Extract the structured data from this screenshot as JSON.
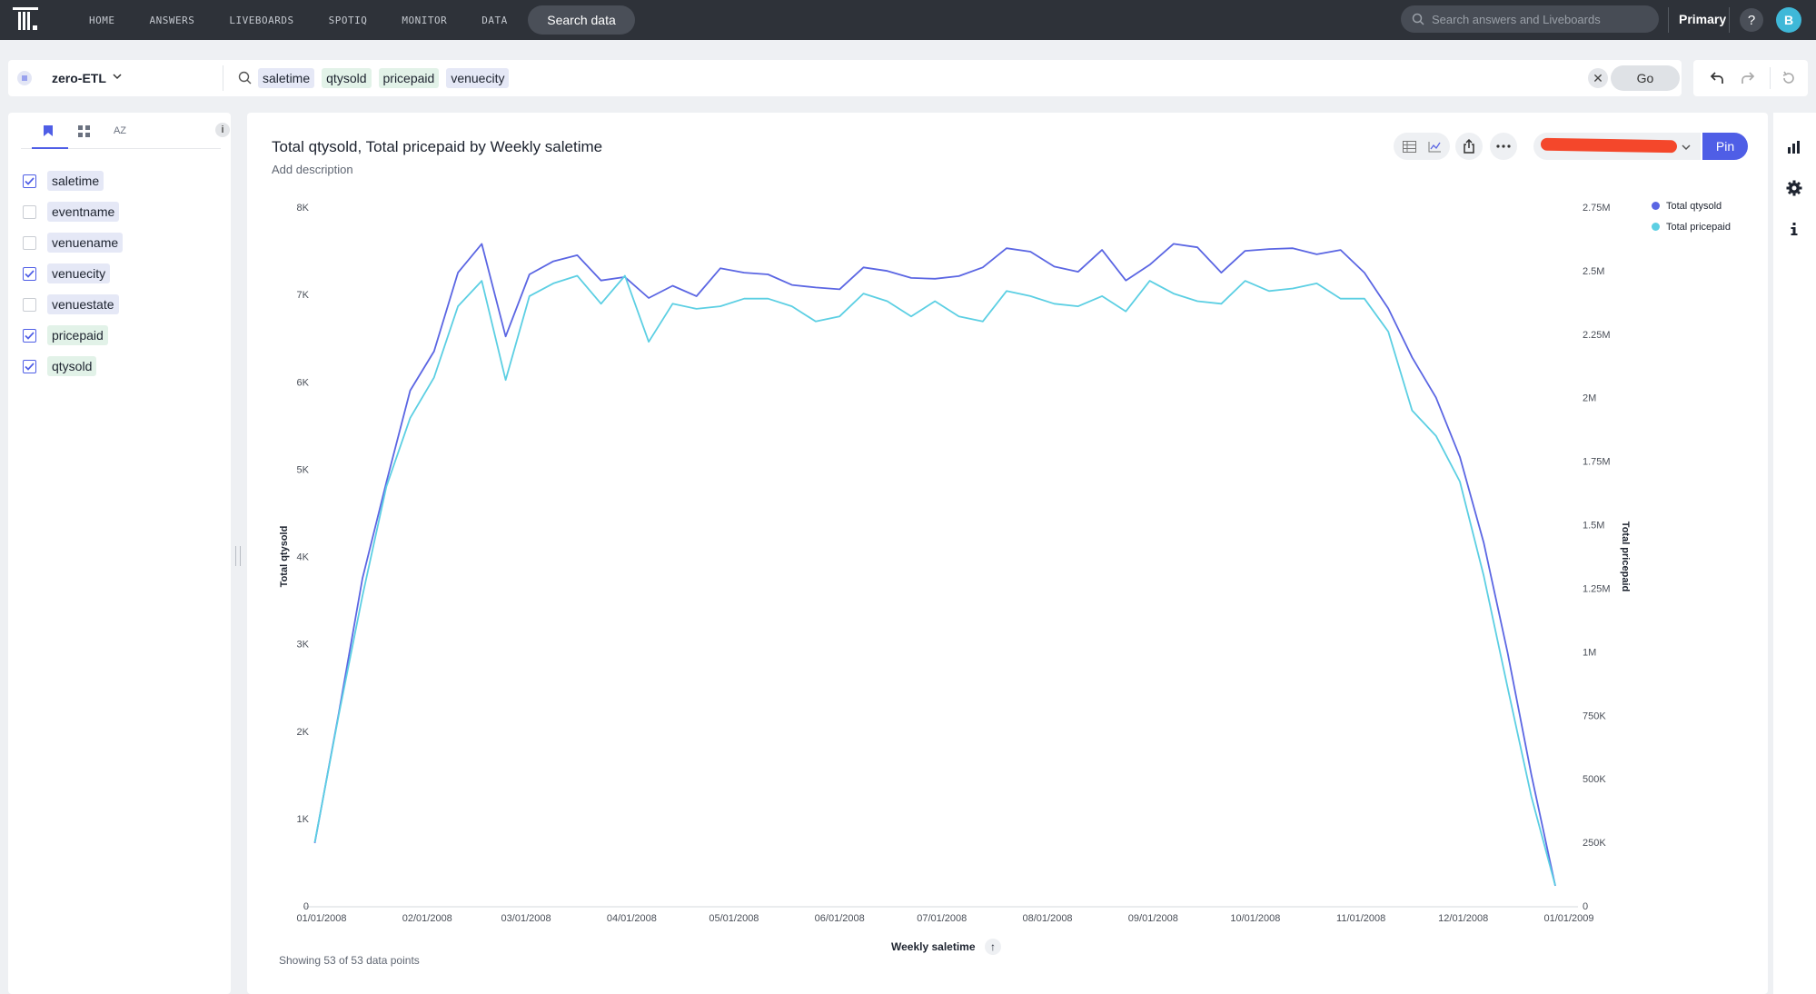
{
  "nav": {
    "links": [
      "HOME",
      "ANSWERS",
      "LIVEBOARDS",
      "SPOTIQ",
      "MONITOR",
      "DATA"
    ],
    "search_data_label": "Search data",
    "global_search_placeholder": "Search answers and Liveboards",
    "org_label": "Primary",
    "help_label": "?",
    "avatar_initial": "B"
  },
  "search_bar": {
    "source_name": "zero-ETL",
    "tokens": [
      {
        "label": "saletime",
        "kind": "attribute"
      },
      {
        "label": "qtysold",
        "kind": "measure"
      },
      {
        "label": "pricepaid",
        "kind": "measure"
      },
      {
        "label": "venuecity",
        "kind": "attribute"
      }
    ],
    "clear_label": "✕",
    "go_label": "Go"
  },
  "left_panel": {
    "tabs": [
      "bookmark",
      "grid",
      "AZ"
    ],
    "az_label": "AZ",
    "info_label": "i",
    "columns": [
      {
        "label": "saletime",
        "checked": true,
        "kind": "attribute"
      },
      {
        "label": "eventname",
        "checked": false,
        "kind": "attribute"
      },
      {
        "label": "venuename",
        "checked": false,
        "kind": "attribute"
      },
      {
        "label": "venuecity",
        "checked": true,
        "kind": "attribute"
      },
      {
        "label": "venuestate",
        "checked": false,
        "kind": "attribute"
      },
      {
        "label": "pricepaid",
        "checked": true,
        "kind": "measure"
      },
      {
        "label": "qtysold",
        "checked": true,
        "kind": "measure"
      }
    ]
  },
  "answer": {
    "title": "Total qtysold, Total pricepaid by Weekly saletime",
    "description_placeholder": "Add description",
    "pin_label": "Pin",
    "data_points_note": "Showing 53 of 53 data points",
    "sort_arrow": "↑"
  },
  "colors": {
    "accent": "#4f5ee6",
    "qtysold": "#5b66e3",
    "pricepaid": "#5ccfe3"
  },
  "chart_data": {
    "type": "line",
    "title": "Total qtysold, Total pricepaid by Weekly saletime",
    "xlabel": "Weekly saletime",
    "ylabel": "Total qtysold",
    "ylabel_right": "Total pricepaid",
    "x_ticks": [
      "01/01/2008",
      "02/01/2008",
      "03/01/2008",
      "04/01/2008",
      "05/01/2008",
      "06/01/2008",
      "07/01/2008",
      "08/01/2008",
      "09/01/2008",
      "10/01/2008",
      "11/01/2008",
      "12/01/2008",
      "01/01/2009"
    ],
    "y_ticks_left": [
      "0",
      "1K",
      "2K",
      "3K",
      "4K",
      "5K",
      "6K",
      "7K",
      "8K"
    ],
    "y_ticks_right": [
      "0",
      "250K",
      "500K",
      "750K",
      "1M",
      "1.25M",
      "1.5M",
      "1.75M",
      "2M",
      "2.25M",
      "2.5M",
      "2.75M"
    ],
    "ylim_left": [
      0,
      8000
    ],
    "ylim_right": [
      0,
      2750000
    ],
    "legend_position": "top-right",
    "grid": false,
    "x_dates": [
      "12/30/2007",
      "01/06/2008",
      "01/13/2008",
      "01/20/2008",
      "01/27/2008",
      "02/03/2008",
      "02/10/2008",
      "02/17/2008",
      "02/24/2008",
      "03/02/2008",
      "03/09/2008",
      "03/16/2008",
      "03/23/2008",
      "03/30/2008",
      "04/06/2008",
      "04/13/2008",
      "04/20/2008",
      "04/27/2008",
      "05/04/2008",
      "05/11/2008",
      "05/18/2008",
      "05/25/2008",
      "06/01/2008",
      "06/08/2008",
      "06/15/2008",
      "06/22/2008",
      "06/29/2008",
      "07/06/2008",
      "07/13/2008",
      "07/20/2008",
      "07/27/2008",
      "08/03/2008",
      "08/10/2008",
      "08/17/2008",
      "08/24/2008",
      "08/31/2008",
      "09/07/2008",
      "09/14/2008",
      "09/21/2008",
      "09/28/2008",
      "10/05/2008",
      "10/12/2008",
      "10/19/2008",
      "10/26/2008",
      "11/02/2008",
      "11/09/2008",
      "11/16/2008",
      "11/23/2008",
      "11/30/2008",
      "12/07/2008",
      "12/14/2008",
      "12/21/2008",
      "12/28/2008"
    ],
    "series": [
      {
        "name": "Total qtysold",
        "axis": "left",
        "values": [
          720,
          2200,
          3750,
          4850,
          5900,
          6350,
          7250,
          7580,
          6520,
          7230,
          7380,
          7450,
          7160,
          7200,
          6960,
          7100,
          6980,
          7300,
          7250,
          7230,
          7110,
          7080,
          7060,
          7310,
          7270,
          7190,
          7180,
          7210,
          7310,
          7530,
          7490,
          7320,
          7260,
          7510,
          7160,
          7340,
          7580,
          7540,
          7250,
          7500,
          7520,
          7530,
          7460,
          7510,
          7250,
          6840,
          6280,
          5820,
          5140,
          4160,
          2900,
          1500,
          230
        ]
      },
      {
        "name": "Total pricepaid",
        "axis": "right",
        "values": [
          250000,
          750000,
          1220000,
          1650000,
          1920000,
          2080000,
          2360000,
          2460000,
          2070000,
          2400000,
          2450000,
          2480000,
          2370000,
          2480000,
          2220000,
          2370000,
          2350000,
          2360000,
          2390000,
          2390000,
          2360000,
          2300000,
          2320000,
          2410000,
          2380000,
          2320000,
          2380000,
          2320000,
          2300000,
          2420000,
          2400000,
          2370000,
          2360000,
          2400000,
          2340000,
          2460000,
          2410000,
          2380000,
          2370000,
          2460000,
          2420000,
          2430000,
          2450000,
          2390000,
          2390000,
          2260000,
          1950000,
          1850000,
          1670000,
          1300000,
          860000,
          430000,
          80000
        ]
      }
    ]
  }
}
